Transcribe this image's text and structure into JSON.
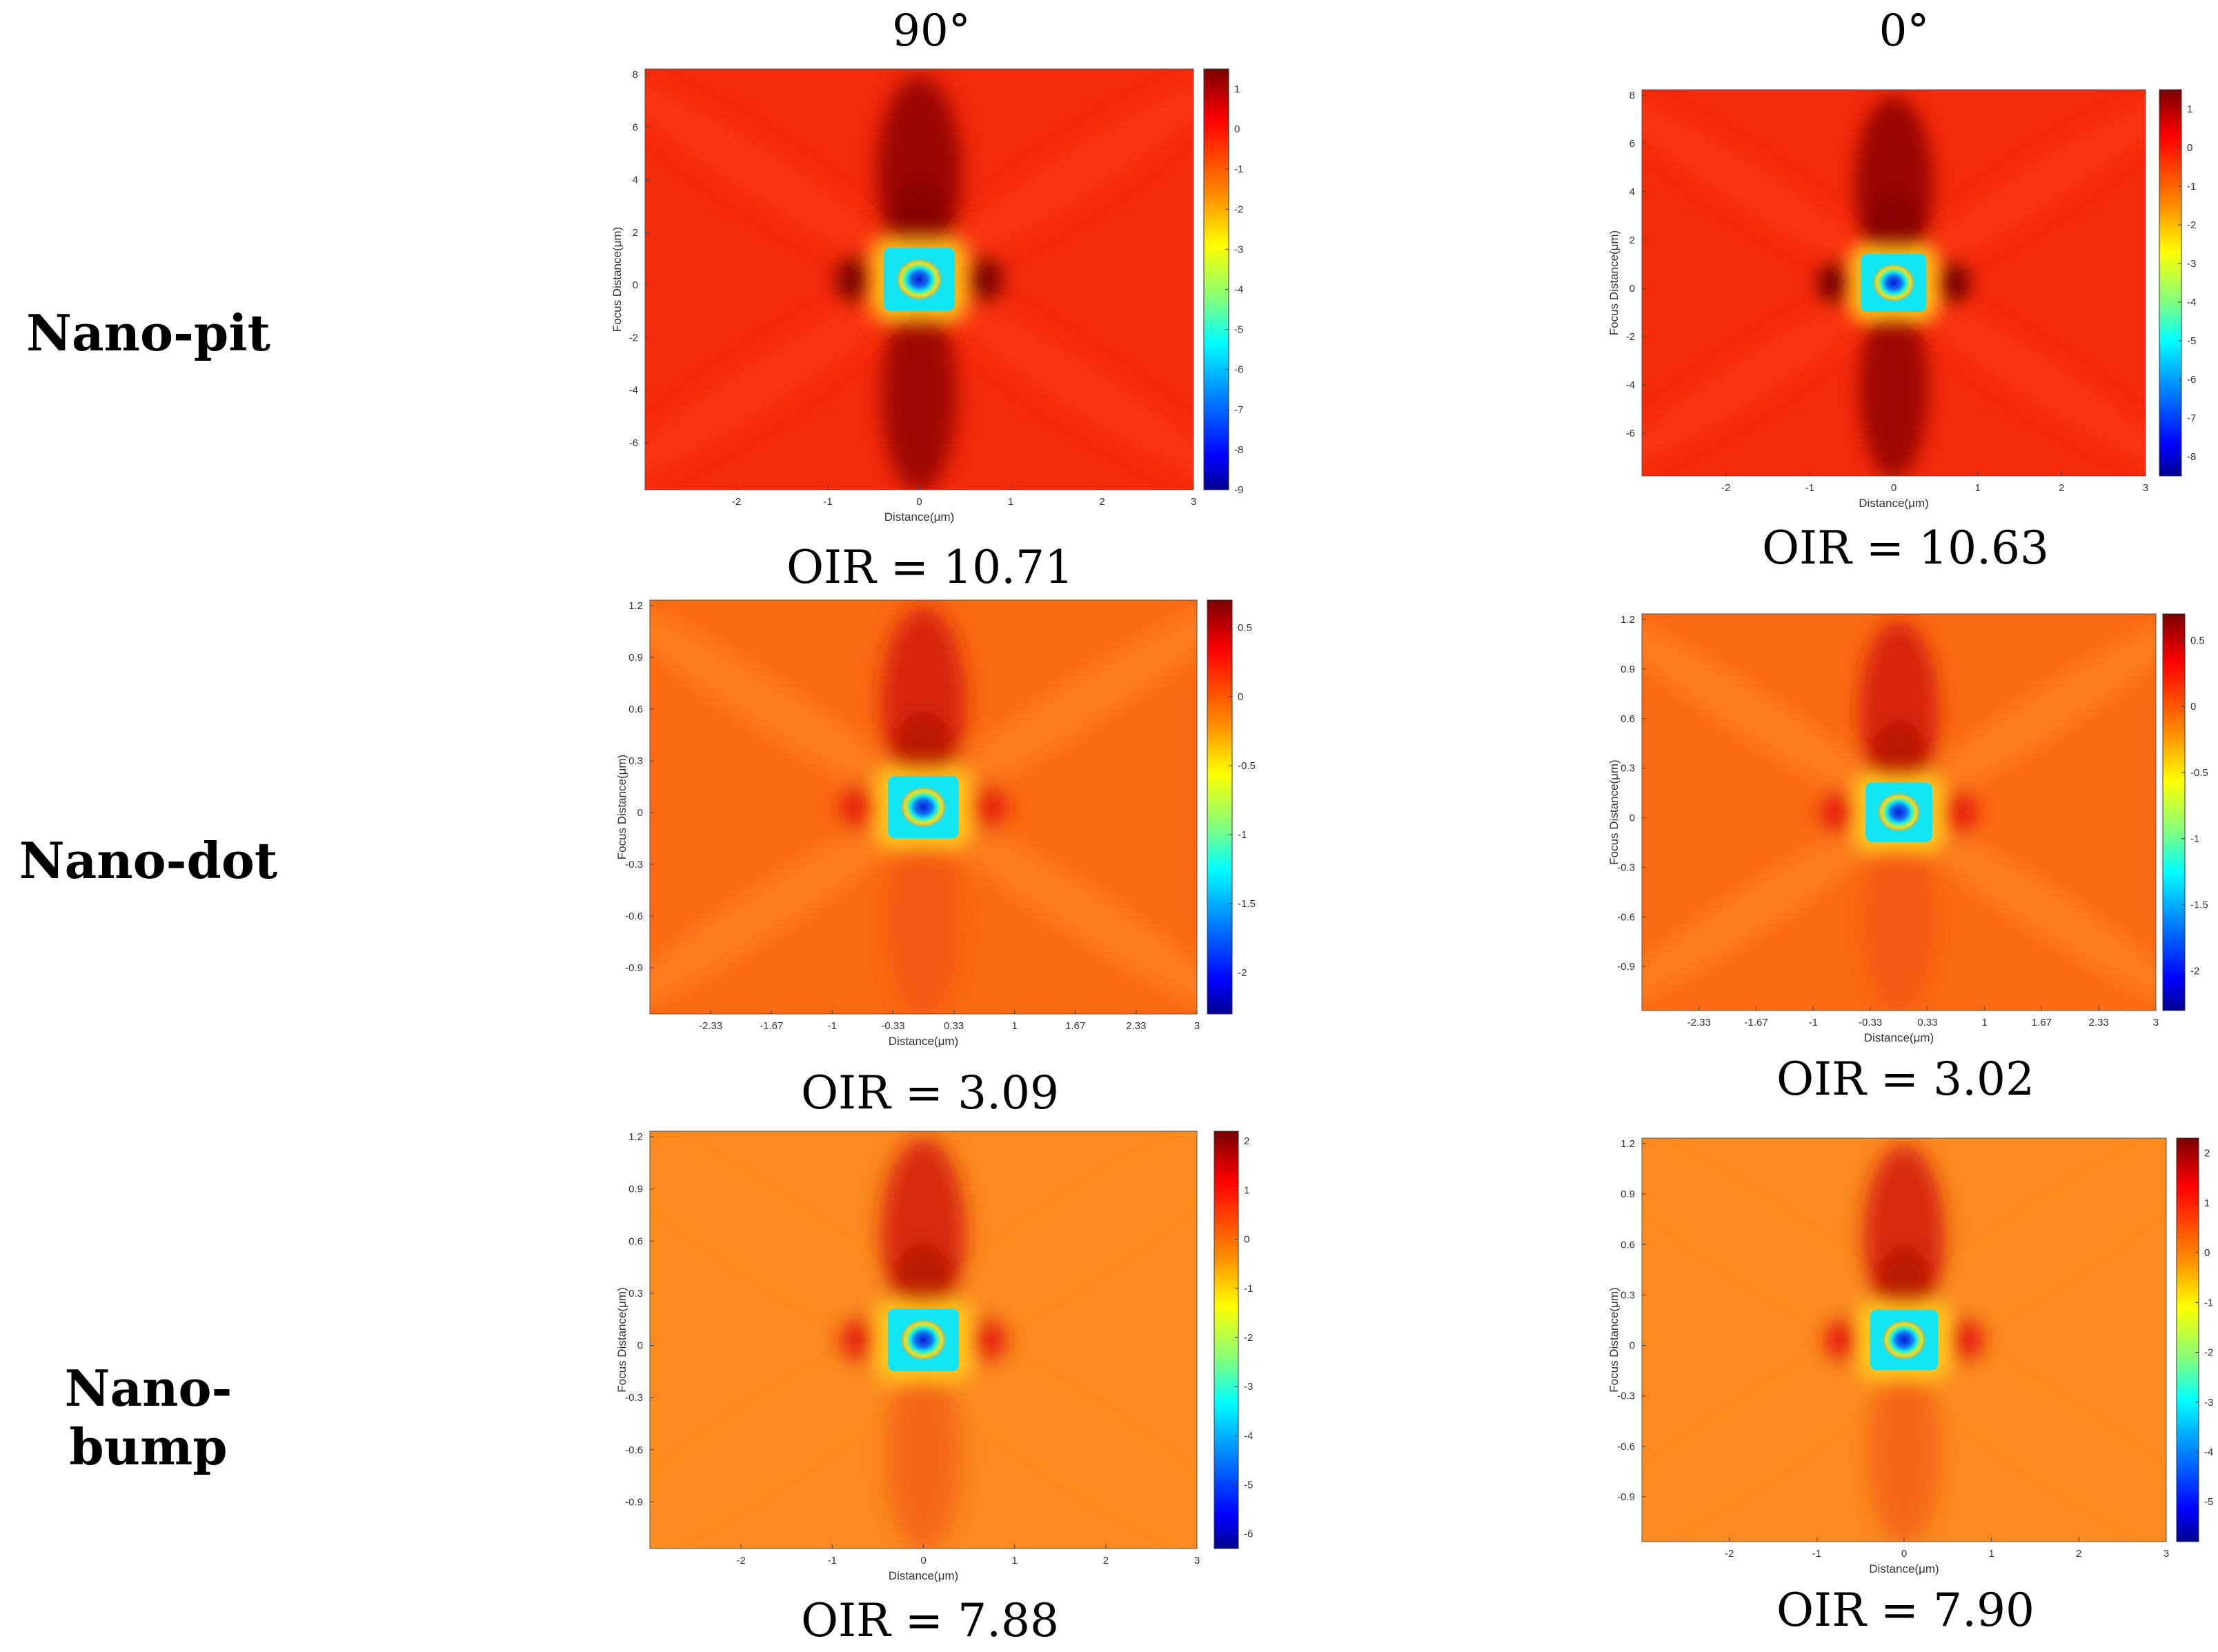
{
  "columns": [
    "90°",
    "0°"
  ],
  "rows": [
    "Nano-pit",
    "Nano-dot",
    "Nano-bump"
  ],
  "colors": {
    "redBg": "#f42a0c",
    "orangeBg": "#fb6a12",
    "orangeBg2": "#fb8a1e",
    "deepRed": "#8a0000",
    "core": "#0a1bd6",
    "ring1": "#12e6f2",
    "ring2": "#ffd21c"
  },
  "chart_data": [
    {
      "type": "heatmap",
      "row": "Nano-pit",
      "column": "90°",
      "oir_label": "OIR = 10.71",
      "xlabel": "Distance(μm)",
      "ylabel": "Focus Distance(μm)",
      "xticks": [
        "-2",
        "-1",
        "0",
        "1",
        "2",
        "3"
      ],
      "yticks": [
        "8",
        "6",
        "4",
        "2",
        "0",
        "-2",
        "-4",
        "-6"
      ],
      "cbticks": [
        "1",
        "0",
        "-1",
        "-2",
        "-3",
        "-4",
        "-5",
        "-6",
        "-7",
        "-8",
        "-9"
      ],
      "xlim": [
        -3,
        3
      ],
      "ylim": [
        -8,
        8
      ],
      "clim": [
        -9,
        1.5
      ],
      "bg": "redBg"
    },
    {
      "type": "heatmap",
      "row": "Nano-pit",
      "column": "0°",
      "oir_label": "OIR = 10.63",
      "xlabel": "Distance(μm)",
      "ylabel": "Focus Distance(μm)",
      "xticks": [
        "-2",
        "-1",
        "0",
        "1",
        "2",
        "3"
      ],
      "yticks": [
        "8",
        "6",
        "4",
        "2",
        "0",
        "-2",
        "-4",
        "-6"
      ],
      "cbticks": [
        "1",
        "0",
        "-1",
        "-2",
        "-3",
        "-4",
        "-5",
        "-6",
        "-7",
        "-8"
      ],
      "xlim": [
        -3,
        3
      ],
      "ylim": [
        -8,
        8
      ],
      "clim": [
        -8.5,
        1.5
      ],
      "bg": "redBg"
    },
    {
      "type": "heatmap",
      "row": "Nano-dot",
      "column": "90°",
      "oir_label": "OIR = 3.09",
      "xlabel": "Distance(μm)",
      "ylabel": "Focus Distance(μm)",
      "xticks": [
        "-2.33",
        "-1.67",
        "-1",
        "-0.33",
        "0.33",
        "1",
        "1.67",
        "2.33",
        "3"
      ],
      "yticks": [
        "1.2",
        "0.9",
        "0.6",
        "0.3",
        "0",
        "-0.3",
        "-0.6",
        "-0.9"
      ],
      "cbticks": [
        "0.5",
        "0",
        "-0.5",
        "-1",
        "-1.5",
        "-2"
      ],
      "xlim": [
        -3,
        3
      ],
      "ylim": [
        -1.2,
        1.2
      ],
      "clim": [
        -2.3,
        0.7
      ],
      "bg": "orangeBg"
    },
    {
      "type": "heatmap",
      "row": "Nano-dot",
      "column": "0°",
      "oir_label": "OIR = 3.02",
      "xlabel": "Distance(μm)",
      "ylabel": "Focus Distance(μm)",
      "xticks": [
        "-2.33",
        "-1.67",
        "-1",
        "-0.33",
        "0.33",
        "1",
        "1.67",
        "2.33",
        "3"
      ],
      "yticks": [
        "1.2",
        "0.9",
        "0.6",
        "0.3",
        "0",
        "-0.3",
        "-0.6",
        "-0.9"
      ],
      "cbticks": [
        "0.5",
        "0",
        "-0.5",
        "-1",
        "-1.5",
        "-2"
      ],
      "xlim": [
        -3,
        3
      ],
      "ylim": [
        -1.2,
        1.2
      ],
      "clim": [
        -2.3,
        0.7
      ],
      "bg": "orangeBg"
    },
    {
      "type": "heatmap",
      "row": "Nano-bump",
      "column": "90°",
      "oir_label": "OIR = 7.88",
      "xlabel": "Distance(μm)",
      "ylabel": "Focus Distance(μm)",
      "xticks": [
        "-2",
        "-1",
        "0",
        "1",
        "2",
        "3"
      ],
      "yticks": [
        "1.2",
        "0.9",
        "0.6",
        "0.3",
        "0",
        "-0.3",
        "-0.6",
        "-0.9"
      ],
      "cbticks": [
        "2",
        "1",
        "0",
        "-1",
        "-2",
        "-3",
        "-4",
        "-5",
        "-6"
      ],
      "xlim": [
        -3,
        3
      ],
      "ylim": [
        -1.2,
        1.2
      ],
      "clim": [
        -6.3,
        2.2
      ],
      "bg": "orangeBg2"
    },
    {
      "type": "heatmap",
      "row": "Nano-bump",
      "column": "0°",
      "oir_label": "OIR = 7.90",
      "xlabel": "Distance(μm)",
      "ylabel": "Focus Distance(μm)",
      "xticks": [
        "-2",
        "-1",
        "0",
        "1",
        "2",
        "3"
      ],
      "yticks": [
        "1.2",
        "0.9",
        "0.6",
        "0.3",
        "0",
        "-0.3",
        "-0.6",
        "-0.9"
      ],
      "cbticks": [
        "2",
        "1",
        "0",
        "-1",
        "-2",
        "-3",
        "-4",
        "-5"
      ],
      "xlim": [
        -3,
        3
      ],
      "ylim": [
        -1.2,
        1.2
      ],
      "clim": [
        -5.8,
        2.3
      ],
      "bg": "orangeBg2"
    }
  ]
}
